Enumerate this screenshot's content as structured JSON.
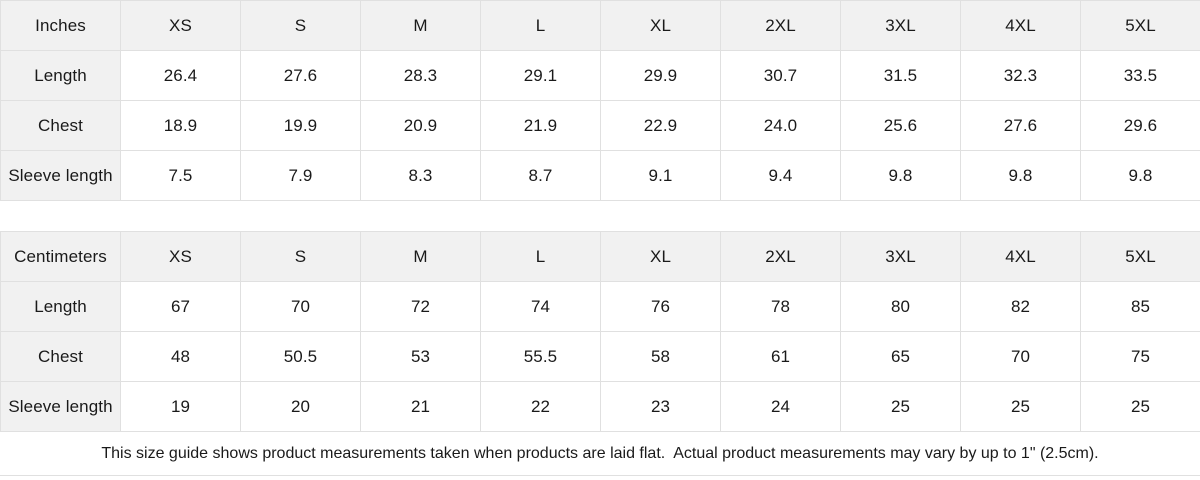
{
  "colors": {
    "header_background": "#f1f1f1",
    "grid_border": "#e0e0e0",
    "text": "#1a1a1a",
    "cell_background": "#ffffff"
  },
  "tables": [
    {
      "unit_label": "Inches",
      "sizes": [
        "XS",
        "S",
        "M",
        "L",
        "XL",
        "2XL",
        "3XL",
        "4XL",
        "5XL"
      ],
      "rows": [
        {
          "label": "Length",
          "values": [
            "26.4",
            "27.6",
            "28.3",
            "29.1",
            "29.9",
            "30.7",
            "31.5",
            "32.3",
            "33.5"
          ]
        },
        {
          "label": "Chest",
          "values": [
            "18.9",
            "19.9",
            "20.9",
            "21.9",
            "22.9",
            "24.0",
            "25.6",
            "27.6",
            "29.6"
          ]
        },
        {
          "label": "Sleeve length",
          "values": [
            "7.5",
            "7.9",
            "8.3",
            "8.7",
            "9.1",
            "9.4",
            "9.8",
            "9.8",
            "9.8"
          ]
        }
      ]
    },
    {
      "unit_label": "Centimeters",
      "sizes": [
        "XS",
        "S",
        "M",
        "L",
        "XL",
        "2XL",
        "3XL",
        "4XL",
        "5XL"
      ],
      "rows": [
        {
          "label": "Length",
          "values": [
            "67",
            "70",
            "72",
            "74",
            "76",
            "78",
            "80",
            "82",
            "85"
          ]
        },
        {
          "label": "Chest",
          "values": [
            "48",
            "50.5",
            "53",
            "55.5",
            "58",
            "61",
            "65",
            "70",
            "75"
          ]
        },
        {
          "label": "Sleeve length",
          "values": [
            "19",
            "20",
            "21",
            "22",
            "23",
            "24",
            "25",
            "25",
            "25"
          ]
        }
      ]
    }
  ],
  "footer": {
    "note": "This size guide shows product measurements taken when products are laid flat.  Actual product measurements may vary by up to 1\" (2.5cm)."
  }
}
